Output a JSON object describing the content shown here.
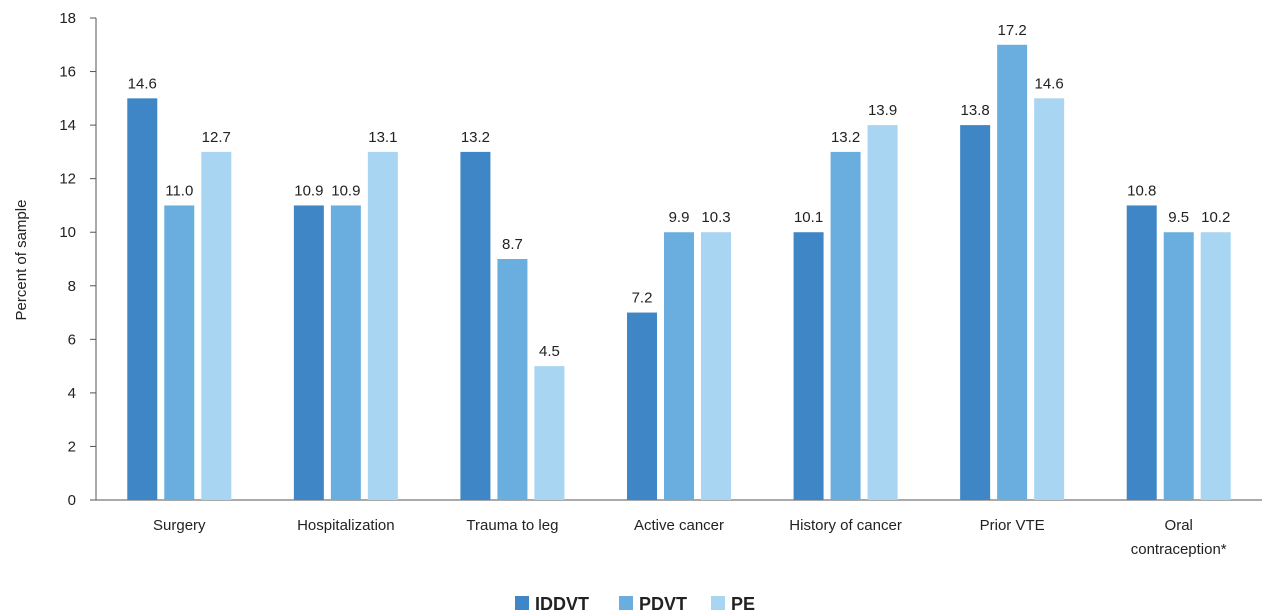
{
  "chart_data": {
    "type": "bar",
    "categories": [
      "Surgery",
      "Hospitalization",
      "Trauma to leg",
      "Active cancer",
      "History of cancer",
      "Prior VTE",
      "Oral contraception*"
    ],
    "series": [
      {
        "name": "IDDVT",
        "color": "#3f86c6",
        "values": [
          15,
          11,
          13,
          7,
          10,
          14,
          11
        ],
        "labels": [
          "14.6",
          "10.9",
          "13.2",
          "7.2",
          "10.1",
          "13.8",
          "10.8"
        ]
      },
      {
        "name": "PDVT",
        "color": "#6aaee0",
        "values": [
          11,
          11,
          9,
          10,
          13,
          17,
          10
        ],
        "labels": [
          "11.0",
          "10.9",
          "8.7",
          "9.9",
          "13.2",
          "17.2",
          "9.5"
        ]
      },
      {
        "name": "PE",
        "color": "#a8d5f2",
        "values": [
          13,
          13,
          5,
          10,
          14,
          15,
          10
        ],
        "labels": [
          "12.7",
          "13.1",
          "4.5",
          "10.3",
          "13.9",
          "14.6",
          "10.2"
        ]
      }
    ],
    "ylabel": "Percent of sample",
    "xlabel": "",
    "ylim": [
      0,
      18
    ],
    "yticks": [
      0,
      2,
      4,
      6,
      8,
      10,
      12,
      14,
      16,
      18
    ],
    "grid": false,
    "legend_position": "bottom"
  }
}
